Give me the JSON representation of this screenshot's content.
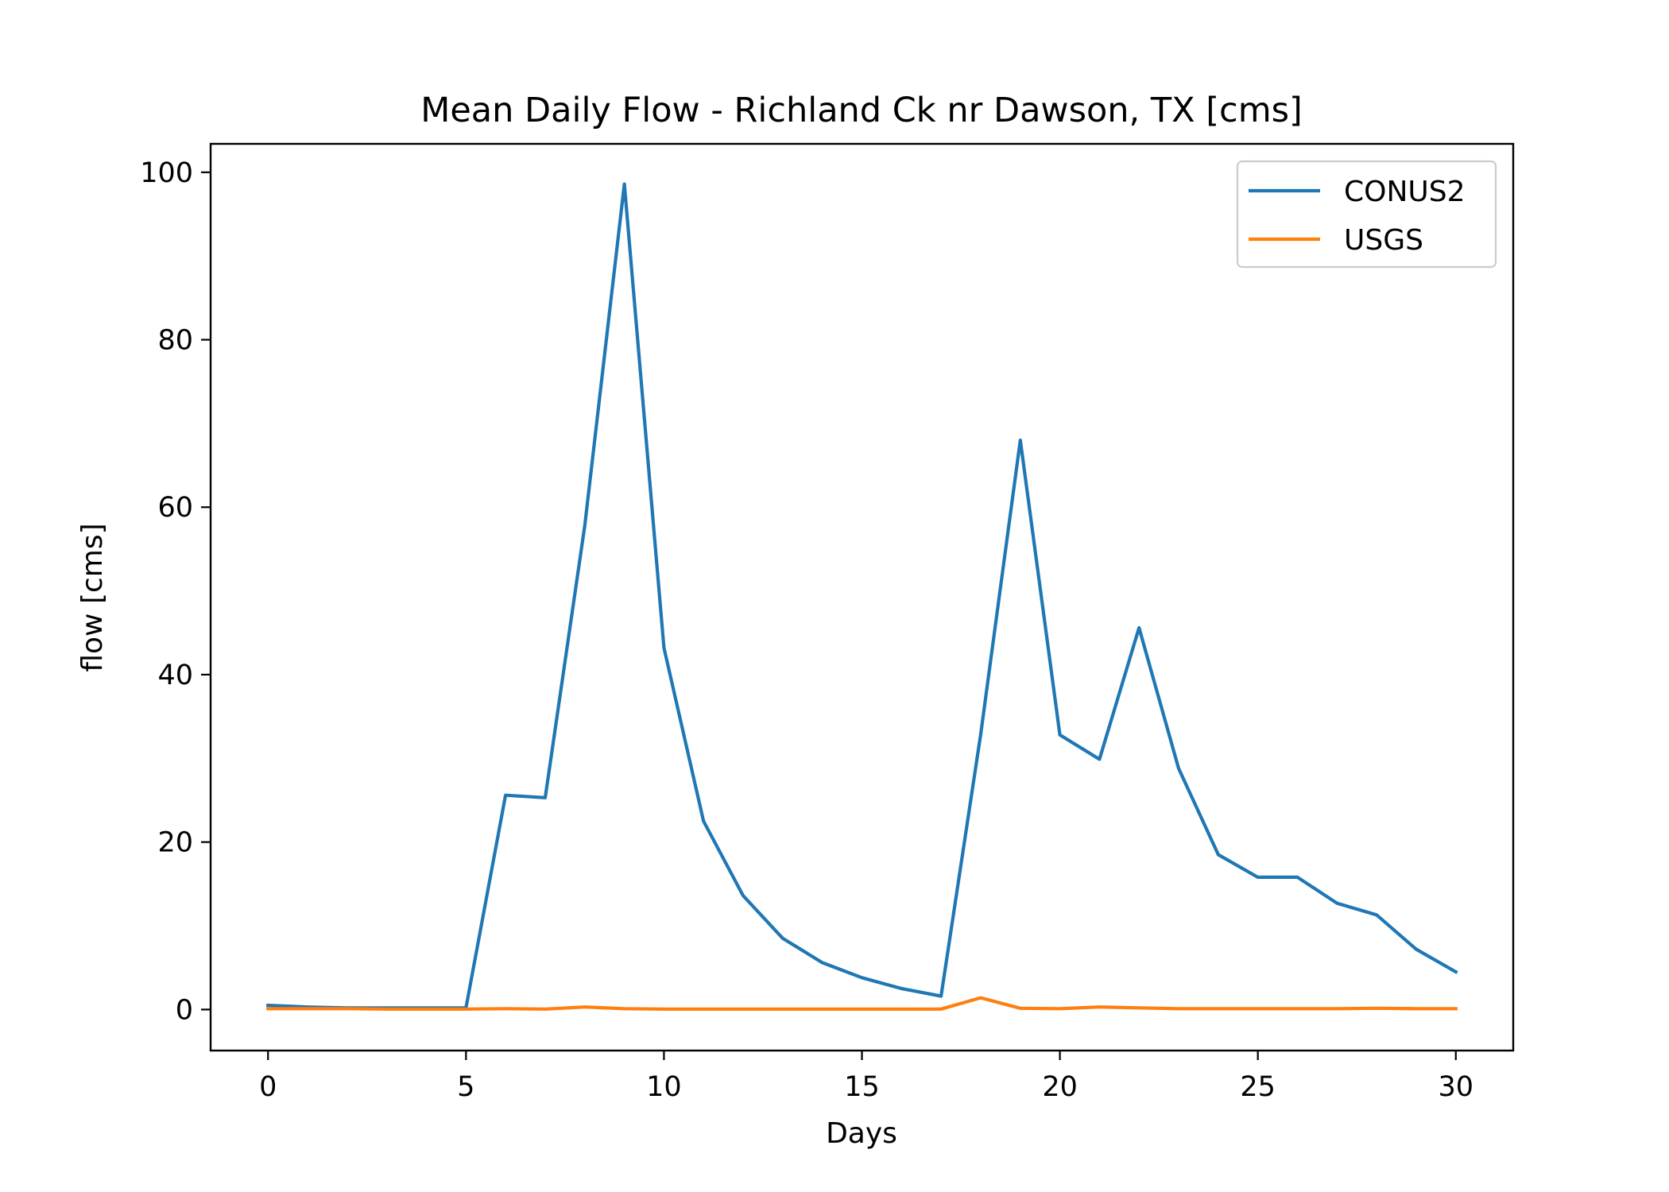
{
  "chart_data": {
    "type": "line",
    "title": "Mean Daily Flow - Richland Ck nr Dawson, TX [cms]",
    "xlabel": "Days",
    "ylabel": "flow [cms]",
    "xlim": [
      -1.45,
      31.45
    ],
    "ylim": [
      -4.9,
      103.4
    ],
    "xticks": [
      0,
      5,
      10,
      15,
      20,
      25,
      30
    ],
    "yticks": [
      0,
      20,
      40,
      60,
      80,
      100
    ],
    "grid": false,
    "legend_position": "top-right",
    "x": [
      0,
      1,
      2,
      3,
      4,
      5,
      6,
      7,
      8,
      9,
      10,
      11,
      12,
      13,
      14,
      15,
      16,
      17,
      18,
      19,
      20,
      21,
      22,
      23,
      24,
      25,
      26,
      27,
      28,
      29,
      30
    ],
    "series": [
      {
        "name": "CONUS2",
        "color": "#1f77b4",
        "values": [
          0.5,
          0.3,
          0.2,
          0.2,
          0.2,
          0.2,
          25.6,
          25.3,
          57.8,
          98.6,
          43.2,
          22.5,
          13.6,
          8.5,
          5.6,
          3.8,
          2.5,
          1.6,
          32.9,
          68.0,
          32.8,
          29.9,
          45.6,
          28.8,
          18.5,
          15.8,
          15.8,
          12.7,
          11.3,
          7.2,
          4.5
        ]
      },
      {
        "name": "USGS",
        "color": "#ff7f0e",
        "values": [
          0.1,
          0.1,
          0.1,
          0.05,
          0.05,
          0.05,
          0.1,
          0.05,
          0.3,
          0.1,
          0.05,
          0.05,
          0.05,
          0.05,
          0.05,
          0.05,
          0.05,
          0.05,
          1.4,
          0.15,
          0.1,
          0.3,
          0.2,
          0.1,
          0.1,
          0.1,
          0.1,
          0.1,
          0.15,
          0.1,
          0.1
        ]
      }
    ]
  }
}
